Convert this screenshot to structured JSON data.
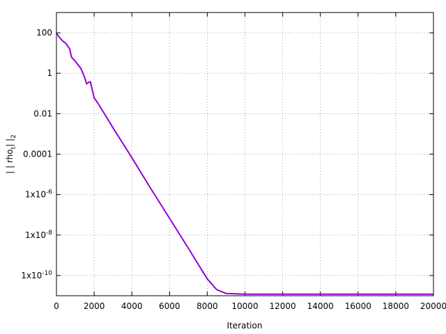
{
  "chart_data": {
    "type": "line",
    "xlabel": "Iteration",
    "ylabel_parts": [
      "| | rho",
      "t",
      "| |",
      "2"
    ],
    "x": [
      0,
      100,
      200,
      350,
      500,
      700,
      800,
      1000,
      1300,
      1500,
      1600,
      1700,
      1800,
      2000,
      2200,
      3000,
      4000,
      5000,
      6000,
      7000,
      8000,
      8500,
      9000,
      10000,
      12000,
      14000,
      16000,
      18000,
      20000
    ],
    "series": [
      {
        "name": "||rho_t||_2",
        "color": "#9400d3",
        "values": [
          100,
          70,
          53,
          38,
          30,
          16,
          6.2,
          3.9,
          1.7,
          0.6,
          0.3,
          0.35,
          0.38,
          0.06,
          0.033,
          0.002,
          6.7e-05,
          2e-06,
          6.7e-08,
          2.2e-09,
          6.8e-11,
          2e-11,
          1.3e-11,
          1.2e-11,
          1.2e-11,
          1.2e-11,
          1.2e-11,
          1.2e-11,
          1.2e-11
        ]
      }
    ],
    "xlim": [
      0,
      20000
    ],
    "xticks": [
      0,
      2000,
      4000,
      6000,
      8000,
      10000,
      12000,
      14000,
      16000,
      18000,
      20000
    ],
    "ylim": [
      1e-11,
      1000
    ],
    "log_y": true,
    "yticks": [
      100,
      1,
      0.01,
      0.0001,
      {
        "value": 1e-06,
        "label": "1x10",
        "superscript": "-6"
      },
      {
        "value": 1e-08,
        "label": "1x10",
        "superscript": "-8"
      },
      {
        "value": 1e-10,
        "label": "1x10",
        "superscript": "-10"
      }
    ],
    "grid": true
  }
}
